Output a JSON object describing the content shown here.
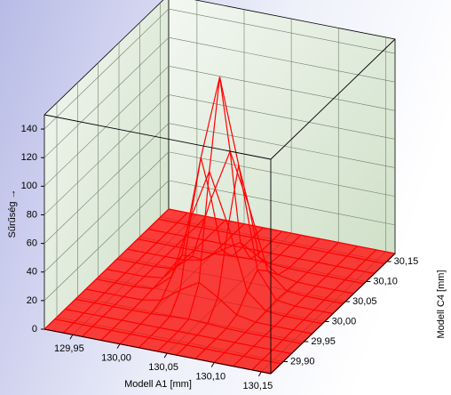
{
  "chart_data": {
    "type": "surface",
    "zlabel": "Sűrűség →",
    "xlabel": "Modell A1 [mm]",
    "ylabel": "Modell C4 [mm]",
    "color": "#ff0000",
    "x": [
      129.92,
      129.94,
      129.96,
      129.98,
      130.0,
      130.02,
      130.04,
      130.06,
      130.08,
      130.1,
      130.12,
      130.14,
      130.16
    ],
    "y": [
      29.87,
      29.895,
      29.92,
      29.945,
      29.97,
      29.995,
      30.02,
      30.045,
      30.07,
      30.095,
      30.12,
      30.145,
      30.17
    ],
    "z": [
      [
        0,
        0,
        0,
        0,
        0,
        0,
        0,
        0,
        0,
        0,
        0,
        0,
        0
      ],
      [
        0,
        0,
        0,
        0,
        0,
        0,
        0,
        0,
        0,
        0,
        0,
        0,
        0
      ],
      [
        0,
        0,
        0,
        0,
        0.01,
        0.03,
        0.05,
        0.03,
        0.01,
        0,
        0,
        0,
        0
      ],
      [
        0,
        0,
        0,
        0.02,
        0.23,
        1,
        1.67,
        1,
        0.23,
        0.02,
        0,
        0,
        0
      ],
      [
        0,
        0,
        0.01,
        0.23,
        2.7,
        12.3,
        20.3,
        12.3,
        2.7,
        0.23,
        0.01,
        0,
        0
      ],
      [
        0,
        0,
        0.03,
        1,
        12.3,
        55.2,
        91,
        55.2,
        12.3,
        1,
        0.03,
        0,
        0
      ],
      [
        0,
        0,
        0.05,
        1.7,
        20.3,
        91,
        150,
        91,
        20.3,
        1.7,
        0.05,
        0,
        0
      ],
      [
        0,
        0,
        0.03,
        1,
        12.3,
        55.2,
        91,
        55.2,
        12.3,
        1,
        0.03,
        0,
        0
      ],
      [
        0,
        0,
        0.01,
        0.23,
        2.7,
        12.3,
        20.3,
        12.3,
        2.7,
        0.23,
        0.01,
        0,
        0
      ],
      [
        0,
        0,
        0,
        0.02,
        0.23,
        1,
        1.67,
        1,
        0.23,
        0.02,
        0,
        0,
        0
      ],
      [
        0,
        0,
        0,
        0,
        0.01,
        0.03,
        0.05,
        0.03,
        0.01,
        0,
        0,
        0,
        0
      ],
      [
        0,
        0,
        0,
        0,
        0,
        0,
        0,
        0,
        0,
        0,
        0,
        0,
        0
      ],
      [
        0,
        0,
        0,
        0,
        0,
        0,
        0,
        0,
        0,
        0,
        0,
        0,
        0
      ]
    ],
    "xlim": [
      129.92,
      130.16
    ],
    "ylim": [
      29.87,
      30.17
    ],
    "zlim": [
      0,
      150
    ],
    "xticks": [
      {
        "value": 129.95,
        "label": "129,95"
      },
      {
        "value": 130.0,
        "label": "130,00"
      },
      {
        "value": 130.05,
        "label": "130,05"
      },
      {
        "value": 130.1,
        "label": "130,10"
      },
      {
        "value": 130.15,
        "label": "130,15"
      }
    ],
    "yticks": [
      {
        "value": 29.9,
        "label": "29,90"
      },
      {
        "value": 29.95,
        "label": "29,95"
      },
      {
        "value": 30.0,
        "label": "30,00"
      },
      {
        "value": 30.05,
        "label": "30,05"
      },
      {
        "value": 30.1,
        "label": "30,10"
      },
      {
        "value": 30.15,
        "label": "30,15"
      }
    ],
    "zticks": [
      0,
      20,
      40,
      60,
      80,
      100,
      120,
      140
    ],
    "grid": true
  }
}
